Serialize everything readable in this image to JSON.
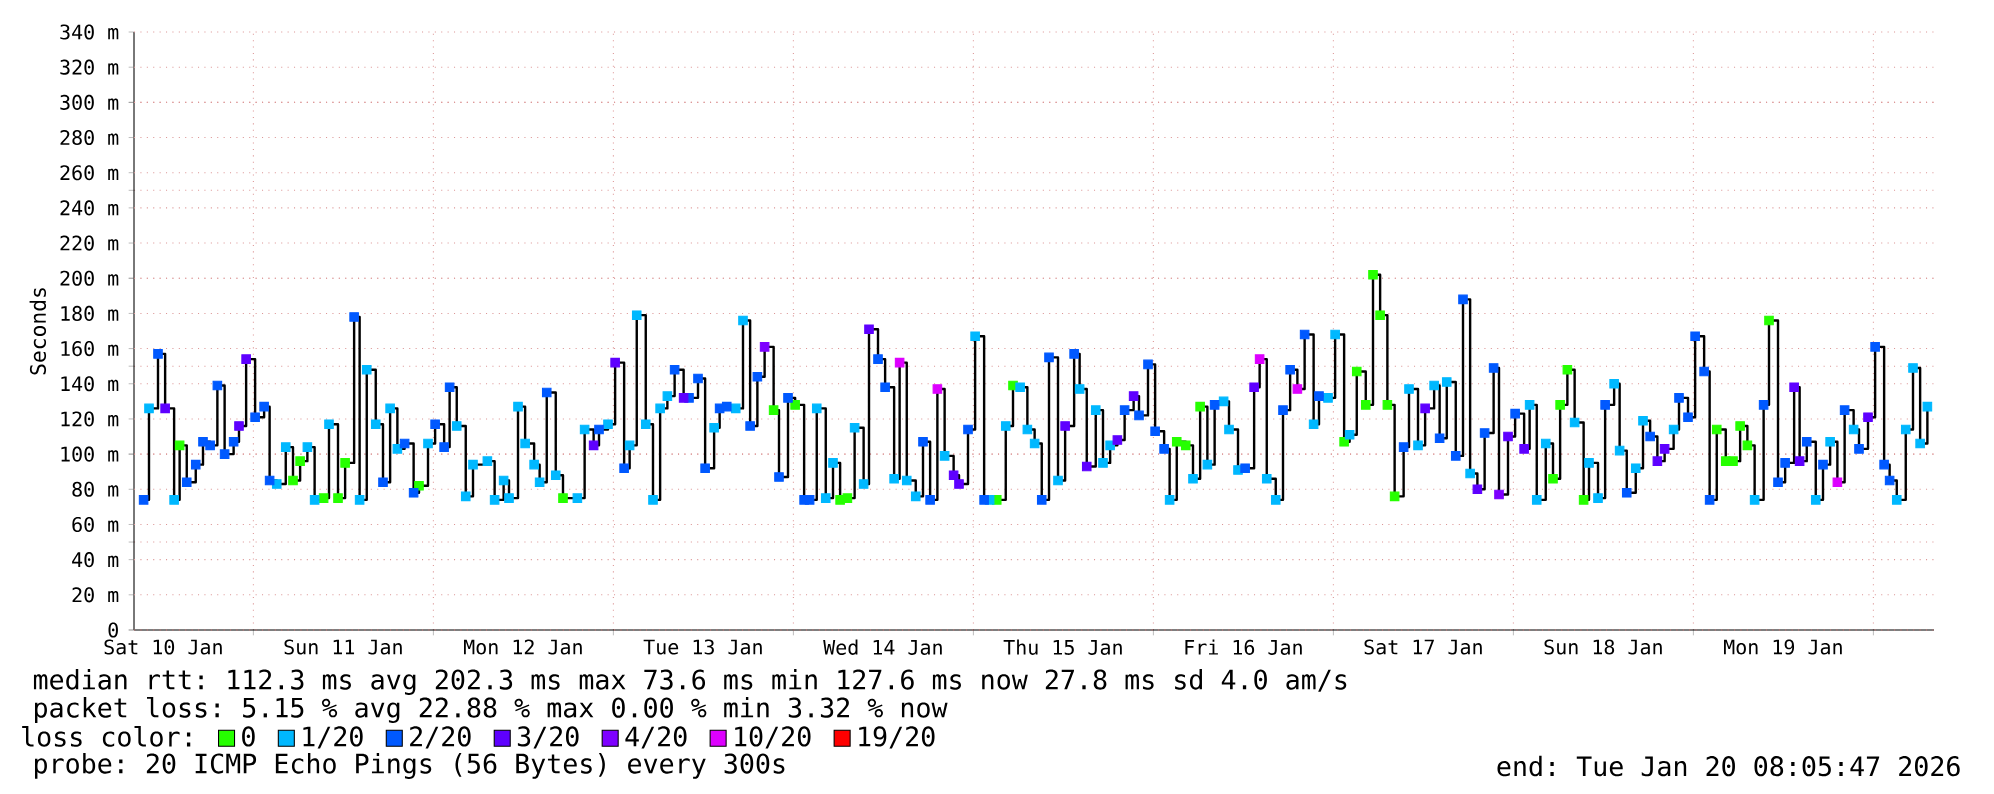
{
  "chart_data": {
    "type": "step",
    "ylabel": "Seconds",
    "legend_title": "loss color:",
    "legend": "bottom",
    "grid": true,
    "xlim": [
      "2026-01-10T08:05",
      "2026-01-20T08:05"
    ],
    "xticks": [
      {
        "value": "2026-01-10T12:00",
        "label": "Sat 10 Jan"
      },
      {
        "value": "2026-01-11T12:00",
        "label": "Sun 11 Jan"
      },
      {
        "value": "2026-01-12T12:00",
        "label": "Mon 12 Jan"
      },
      {
        "value": "2026-01-13T12:00",
        "label": "Tue 13 Jan"
      },
      {
        "value": "2026-01-14T12:00",
        "label": "Wed 14 Jan"
      },
      {
        "value": "2026-01-15T12:00",
        "label": "Thu 15 Jan"
      },
      {
        "value": "2026-01-16T12:00",
        "label": "Fri 16 Jan"
      },
      {
        "value": "2026-01-17T12:00",
        "label": "Sat 17 Jan"
      },
      {
        "value": "2026-01-18T12:00",
        "label": "Sun 18 Jan"
      },
      {
        "value": "2026-01-19T12:00",
        "label": "Mon 19 Jan"
      },
      {
        "value": "2026-01-11",
        "label": null
      },
      {
        "value": "2026-01-12",
        "label": null
      },
      {
        "value": "2026-01-13",
        "label": null
      },
      {
        "value": "2026-01-14",
        "label": null
      },
      {
        "value": "2026-01-15",
        "label": null
      },
      {
        "value": "2026-01-16",
        "label": null
      },
      {
        "value": "2026-01-17",
        "label": null
      },
      {
        "value": "2026-01-18",
        "label": null
      },
      {
        "value": "2026-01-19",
        "label": null
      },
      {
        "value": "2026-01-20",
        "label": null
      }
    ],
    "ylim": [
      0,
      340
    ],
    "yticks": [
      0,
      {
        "value": 20,
        "label": "20 m"
      },
      {
        "value": 40,
        "label": "40 m"
      },
      {
        "value": 60,
        "label": "60 m"
      },
      {
        "value": 80,
        "label": "80 m"
      },
      {
        "value": 100,
        "label": "100 m"
      },
      {
        "value": 120,
        "label": "120 m"
      },
      {
        "value": 140,
        "label": "140 m"
      },
      {
        "value": 160,
        "label": "160 m"
      },
      {
        "value": 180,
        "label": "180 m"
      },
      {
        "value": 200,
        "label": "200 m"
      },
      {
        "value": 220,
        "label": "220 m"
      },
      {
        "value": 240,
        "label": "240 m"
      },
      {
        "value": 260,
        "label": "260 m"
      },
      {
        "value": 280,
        "label": "280 m"
      },
      {
        "value": 300,
        "label": "300 m"
      },
      {
        "value": 320,
        "label": "320 m"
      },
      {
        "value": 340,
        "label": "340 m"
      }
    ],
    "annotations": [
      "median rtt: 112.3 ms avg 202.3 ms max 73.6 ms min 127.6 ms now 27.8 ms sd 4.0 am/s",
      "packet loss: 5.15 % avg 22.88 % max 0.00 % min 3.32 % now",
      "probe: 20 ICMP Echo Pings (56 Bytes) every 300s",
      "end: Tue Jan 20 08:05:47 2026"
    ],
    "series": [
      {
        "color": "#000000",
        "marker": "none",
        "line_style": "solid",
        "x": [
          "2026-01-10T09:22",
          "2026-01-10T10:05",
          "2026-01-10T11:17",
          "2026-01-10T12:14",
          "2026-01-10T13:26",
          "2026-01-10T14:10",
          "2026-01-10T15:07",
          "2026-01-10T16:19",
          "2026-01-10T17:17",
          "2026-01-10T18:14",
          "2026-01-10T19:12",
          "2026-01-10T20:10",
          "2026-01-10T21:22",
          "2026-01-10T22:05",
          "2026-01-10T23:02",
          "2026-01-11T00:14",
          "2026-01-11T01:26",
          "2026-01-11T02:10",
          "2026-01-11T03:07",
          "2026-01-11T04:19",
          "2026-01-11T05:17",
          "2026-01-11T06:14",
          "2026-01-11T07:12",
          "2026-01-11T08:10",
          "2026-01-11T09:22",
          "2026-01-11T10:05",
          "2026-01-11T11:17",
          "2026-01-11T12:14",
          "2026-01-11T13:26",
          "2026-01-11T14:10",
          "2026-01-11T15:07",
          "2026-01-11T16:19",
          "2026-01-11T17:17",
          "2026-01-11T18:14",
          "2026-01-11T19:12",
          "2026-01-11T20:10",
          "2026-01-11T21:22",
          "2026-01-11T22:05",
          "2026-01-11T23:17",
          "2026-01-12T00:14",
          "2026-01-12T01:26",
          "2026-01-12T02:10",
          "2026-01-12T03:07",
          "2026-01-12T04:19",
          "2026-01-12T05:17",
          "2026-01-12T07:12",
          "2026-01-12T08:10",
          "2026-01-12T09:22",
          "2026-01-12T10:05",
          "2026-01-12T11:17",
          "2026-01-12T12:14",
          "2026-01-12T13:26",
          "2026-01-12T14:10",
          "2026-01-12T15:07",
          "2026-01-12T16:19",
          "2026-01-12T17:17",
          "2026-01-12T19:12",
          "2026-01-12T20:10",
          "2026-01-12T21:22",
          "2026-01-12T22:05",
          "2026-01-12T23:17",
          "2026-01-13T00:14",
          "2026-01-13T01:26",
          "2026-01-13T02:10",
          "2026-01-13T03:07",
          "2026-01-13T04:19",
          "2026-01-13T05:17",
          "2026-01-13T06:14",
          "2026-01-13T07:12",
          "2026-01-13T08:10",
          "2026-01-13T09:22",
          "2026-01-13T10:05",
          "2026-01-13T11:17",
          "2026-01-13T12:14",
          "2026-01-13T13:26",
          "2026-01-13T14:10",
          "2026-01-13T15:07",
          "2026-01-13T16:19",
          "2026-01-13T17:17",
          "2026-01-13T18:14",
          "2026-01-13T19:12",
          "2026-01-13T20:10",
          "2026-01-13T21:22",
          "2026-01-13T22:05",
          "2026-01-13T23:17",
          "2026-01-14T00:14",
          "2026-01-14T01:26",
          "2026-01-14T02:10",
          "2026-01-14T03:07",
          "2026-01-14T04:19",
          "2026-01-14T05:17",
          "2026-01-14T06:14",
          "2026-01-14T07:12",
          "2026-01-14T08:10",
          "2026-01-14T09:22",
          "2026-01-14T10:05",
          "2026-01-14T11:17",
          "2026-01-14T12:14",
          "2026-01-14T13:26",
          "2026-01-14T14:10",
          "2026-01-14T15:07",
          "2026-01-14T16:19",
          "2026-01-14T17:17",
          "2026-01-14T18:14",
          "2026-01-14T19:12",
          "2026-01-14T20:10",
          "2026-01-14T21:22",
          "2026-01-14T22:05",
          "2026-01-14T23:17",
          "2026-01-15T00:14",
          "2026-01-15T01:26",
          "2026-01-15T02:10",
          "2026-01-15T03:07",
          "2026-01-15T04:19",
          "2026-01-15T05:17",
          "2026-01-15T06:14",
          "2026-01-15T07:12",
          "2026-01-15T08:10",
          "2026-01-15T09:07",
          "2026-01-15T10:05",
          "2026-01-15T11:17",
          "2026-01-15T12:14",
          "2026-01-15T13:26",
          "2026-01-15T14:10",
          "2026-01-15T15:07",
          "2026-01-15T16:19",
          "2026-01-15T17:17",
          "2026-01-15T18:14",
          "2026-01-15T19:12",
          "2026-01-15T20:10",
          "2026-01-15T21:22",
          "2026-01-15T22:05",
          "2026-01-15T23:17",
          "2026-01-16T00:14",
          "2026-01-16T01:26",
          "2026-01-16T02:10",
          "2026-01-16T03:07",
          "2026-01-16T04:19",
          "2026-01-16T05:17",
          "2026-01-16T06:14",
          "2026-01-16T07:12",
          "2026-01-16T08:10",
          "2026-01-16T09:22",
          "2026-01-16T10:05",
          "2026-01-16T11:17",
          "2026-01-16T12:14",
          "2026-01-16T13:26",
          "2026-01-16T14:10",
          "2026-01-16T15:07",
          "2026-01-16T16:19",
          "2026-01-16T17:17",
          "2026-01-16T18:14",
          "2026-01-16T19:12",
          "2026-01-16T20:10",
          "2026-01-16T21:22",
          "2026-01-16T22:05",
          "2026-01-16T23:17",
          "2026-01-17T00:14",
          "2026-01-17T01:26",
          "2026-01-17T02:10",
          "2026-01-17T03:07",
          "2026-01-17T04:19",
          "2026-01-17T05:17",
          "2026-01-17T06:14",
          "2026-01-17T07:12",
          "2026-01-17T08:10",
          "2026-01-17T09:22",
          "2026-01-17T10:05",
          "2026-01-17T11:17",
          "2026-01-17T12:14",
          "2026-01-17T13:26",
          "2026-01-17T14:10",
          "2026-01-17T15:07",
          "2026-01-17T16:19",
          "2026-01-17T17:17",
          "2026-01-17T18:14",
          "2026-01-17T19:12",
          "2026-01-17T20:10",
          "2026-01-17T21:22",
          "2026-01-17T22:05",
          "2026-01-17T23:17",
          "2026-01-18T00:14",
          "2026-01-18T01:26",
          "2026-01-18T02:10",
          "2026-01-18T03:07",
          "2026-01-18T04:19",
          "2026-01-18T05:17",
          "2026-01-18T06:14",
          "2026-01-18T07:12",
          "2026-01-18T08:10",
          "2026-01-18T09:22",
          "2026-01-18T10:05",
          "2026-01-18T11:17",
          "2026-01-18T12:14",
          "2026-01-18T13:26",
          "2026-01-18T14:10",
          "2026-01-18T15:07",
          "2026-01-18T16:19",
          "2026-01-18T17:17",
          "2026-01-18T18:14",
          "2026-01-18T19:12",
          "2026-01-18T20:10",
          "2026-01-18T21:22",
          "2026-01-18T22:05",
          "2026-01-18T23:17",
          "2026-01-19T00:14",
          "2026-01-19T01:26",
          "2026-01-19T02:10",
          "2026-01-19T03:07",
          "2026-01-19T04:19",
          "2026-01-19T05:17",
          "2026-01-19T06:14",
          "2026-01-19T07:12",
          "2026-01-19T08:10",
          "2026-01-19T09:22",
          "2026-01-19T10:05",
          "2026-01-19T11:17",
          "2026-01-19T12:14",
          "2026-01-19T13:26",
          "2026-01-19T14:10",
          "2026-01-19T15:07",
          "2026-01-19T16:19",
          "2026-01-19T17:17",
          "2026-01-19T18:14",
          "2026-01-19T19:12",
          "2026-01-19T20:10",
          "2026-01-19T21:22",
          "2026-01-19T22:05",
          "2026-01-19T23:17",
          "2026-01-20T00:14",
          "2026-01-20T01:26",
          "2026-01-20T02:10",
          "2026-01-20T03:07",
          "2026-01-20T04:19",
          "2026-01-20T05:17",
          "2026-01-20T06:14",
          "2026-01-20T07:12"
        ],
        "values": [
          74,
          126,
          157,
          126,
          74,
          105,
          84,
          94,
          107,
          105,
          139,
          100,
          107,
          116,
          154,
          121,
          127,
          85,
          83,
          104,
          85,
          96,
          104,
          74,
          75,
          117,
          75,
          95,
          178,
          74,
          148,
          117,
          84,
          126,
          103,
          106,
          78,
          82,
          106,
          117,
          104,
          138,
          116,
          76,
          94,
          96,
          74,
          85,
          75,
          127,
          106,
          94,
          84,
          135,
          88,
          75,
          75,
          114,
          105,
          114,
          117,
          152,
          92,
          105,
          179,
          117,
          74,
          126,
          133,
          148,
          132,
          132,
          143,
          92,
          115,
          126,
          127,
          126,
          176,
          116,
          144,
          161,
          125,
          87,
          132,
          128,
          74,
          74,
          126,
          75,
          95,
          74,
          75,
          115,
          83,
          171,
          154,
          138,
          86,
          152,
          85,
          76,
          107,
          74,
          137,
          99,
          88,
          83,
          114,
          167,
          74,
          74,
          74,
          116,
          139,
          138,
          114,
          106,
          74,
          155,
          85,
          116,
          157,
          137,
          93,
          125,
          95,
          105,
          108,
          125,
          133,
          122,
          151,
          113,
          103,
          74,
          107,
          105,
          86,
          127,
          94,
          128,
          130,
          114,
          91,
          92,
          138,
          154,
          86,
          74,
          125,
          148,
          137,
          168,
          117,
          133,
          132,
          168,
          107,
          111,
          147,
          128,
          202,
          179,
          128,
          76,
          104,
          137,
          105,
          126,
          139,
          109,
          141,
          99,
          188,
          89,
          80,
          112,
          149,
          77,
          110,
          123,
          103,
          128,
          74,
          106,
          86,
          128,
          148,
          118,
          74,
          95,
          75,
          128,
          140,
          102,
          78,
          92,
          119,
          110,
          96,
          103,
          114,
          132,
          121,
          167,
          147,
          74,
          114,
          96,
          96,
          116,
          105,
          74,
          128,
          176,
          84,
          95,
          138,
          96,
          107,
          74,
          94,
          107,
          84,
          125,
          114,
          103,
          121,
          161,
          94,
          85,
          74,
          114,
          149,
          106,
          127
        ]
      },
      {
        "type": "scatter",
        "name": "0",
        "color": "#26ff00",
        "marker": "square",
        "x": [
          "2026-01-10T14:10",
          "2026-01-11T05:17",
          "2026-01-11T06:14",
          "2026-01-11T09:22",
          "2026-01-11T11:17",
          "2026-01-11T12:14",
          "2026-01-11T22:05",
          "2026-01-12T17:17",
          "2026-01-13T21:22",
          "2026-01-14T00:14",
          "2026-01-14T06:14",
          "2026-01-14T07:12",
          "2026-01-15T03:07",
          "2026-01-15T05:17",
          "2026-01-16T03:07",
          "2026-01-16T04:19",
          "2026-01-16T06:14",
          "2026-01-17T01:26",
          "2026-01-17T03:07",
          "2026-01-17T04:19",
          "2026-01-17T05:17",
          "2026-01-17T06:14",
          "2026-01-17T07:12",
          "2026-01-17T08:10",
          "2026-01-18T05:17",
          "2026-01-18T06:14",
          "2026-01-18T07:12",
          "2026-01-18T09:22",
          "2026-01-19T03:07",
          "2026-01-19T04:19",
          "2026-01-19T05:17",
          "2026-01-19T06:14",
          "2026-01-19T07:12",
          "2026-01-19T10:05"
        ],
        "values": [
          105,
          85,
          96,
          75,
          75,
          95,
          82,
          75,
          125,
          128,
          74,
          75,
          74,
          139,
          107,
          105,
          127,
          107,
          147,
          128,
          202,
          179,
          128,
          76,
          86,
          128,
          148,
          74,
          114,
          96,
          96,
          116,
          105,
          176
        ]
      },
      {
        "type": "scatter",
        "name": "1/20",
        "color": "#00b8ff",
        "marker": "square",
        "x": [
          "2026-01-10T10:05",
          "2026-01-10T13:26",
          "2026-01-11T03:07",
          "2026-01-11T04:19",
          "2026-01-11T07:12",
          "2026-01-11T08:10",
          "2026-01-11T10:05",
          "2026-01-11T14:10",
          "2026-01-11T15:07",
          "2026-01-11T16:19",
          "2026-01-11T18:14",
          "2026-01-11T19:12",
          "2026-01-11T23:17",
          "2026-01-12T03:07",
          "2026-01-12T04:19",
          "2026-01-12T05:17",
          "2026-01-12T07:12",
          "2026-01-12T08:10",
          "2026-01-12T09:22",
          "2026-01-12T10:05",
          "2026-01-12T11:17",
          "2026-01-12T12:14",
          "2026-01-12T13:26",
          "2026-01-12T14:10",
          "2026-01-12T16:19",
          "2026-01-12T19:12",
          "2026-01-12T20:10",
          "2026-01-12T23:17",
          "2026-01-13T02:10",
          "2026-01-13T03:07",
          "2026-01-13T04:19",
          "2026-01-13T05:17",
          "2026-01-13T06:14",
          "2026-01-13T07:12",
          "2026-01-13T13:26",
          "2026-01-13T16:19",
          "2026-01-13T17:17",
          "2026-01-14T03:07",
          "2026-01-14T04:19",
          "2026-01-14T05:17",
          "2026-01-14T08:10",
          "2026-01-14T09:22",
          "2026-01-14T13:26",
          "2026-01-14T15:07",
          "2026-01-14T16:19",
          "2026-01-14T20:10",
          "2026-01-15T00:14",
          "2026-01-15T02:10",
          "2026-01-15T04:19",
          "2026-01-15T06:14",
          "2026-01-15T07:12",
          "2026-01-15T08:10",
          "2026-01-15T11:17",
          "2026-01-15T14:10",
          "2026-01-15T16:19",
          "2026-01-15T17:17",
          "2026-01-15T18:14",
          "2026-01-16T02:10",
          "2026-01-16T05:17",
          "2026-01-16T07:12",
          "2026-01-16T09:22",
          "2026-01-16T10:05",
          "2026-01-16T11:17",
          "2026-01-16T15:07",
          "2026-01-16T16:19",
          "2026-01-16T21:22",
          "2026-01-16T23:17",
          "2026-01-17T00:14",
          "2026-01-17T02:10",
          "2026-01-17T10:05",
          "2026-01-17T11:17",
          "2026-01-17T13:26",
          "2026-01-17T15:07",
          "2026-01-17T18:14",
          "2026-01-18T02:10",
          "2026-01-18T03:07",
          "2026-01-18T04:19",
          "2026-01-18T08:10",
          "2026-01-18T10:05",
          "2026-01-18T11:17",
          "2026-01-18T13:26",
          "2026-01-18T14:10",
          "2026-01-18T16:19",
          "2026-01-18T17:17",
          "2026-01-18T21:22",
          "2026-01-19T08:10",
          "2026-01-19T16:19",
          "2026-01-19T18:14",
          "2026-01-19T21:22",
          "2026-01-20T03:07",
          "2026-01-20T04:19",
          "2026-01-20T05:17",
          "2026-01-20T06:14",
          "2026-01-20T07:12"
        ],
        "values": [
          126,
          74,
          83,
          104,
          104,
          74,
          117,
          74,
          148,
          117,
          126,
          103,
          106,
          116,
          76,
          94,
          96,
          74,
          85,
          75,
          127,
          106,
          94,
          84,
          88,
          75,
          114,
          117,
          105,
          179,
          117,
          74,
          126,
          133,
          115,
          126,
          176,
          126,
          75,
          95,
          115,
          83,
          86,
          85,
          76,
          99,
          167,
          74,
          116,
          138,
          114,
          106,
          85,
          137,
          125,
          95,
          105,
          74,
          86,
          94,
          130,
          114,
          91,
          86,
          74,
          117,
          132,
          168,
          111,
          137,
          105,
          139,
          141,
          89,
          128,
          74,
          106,
          118,
          95,
          75,
          140,
          102,
          92,
          119,
          114,
          74,
          74,
          107,
          114,
          74,
          114,
          149,
          106,
          127
        ]
      },
      {
        "type": "scatter",
        "name": "2/20",
        "color": "#0059ff",
        "marker": "square",
        "x": [
          "2026-01-10T09:22",
          "2026-01-10T11:17",
          "2026-01-10T15:07",
          "2026-01-10T16:19",
          "2026-01-10T17:17",
          "2026-01-10T18:14",
          "2026-01-10T19:12",
          "2026-01-10T20:10",
          "2026-01-10T21:22",
          "2026-01-11T00:14",
          "2026-01-11T01:26",
          "2026-01-11T02:10",
          "2026-01-11T13:26",
          "2026-01-11T17:17",
          "2026-01-11T20:10",
          "2026-01-11T21:22",
          "2026-01-12T00:14",
          "2026-01-12T01:26",
          "2026-01-12T02:10",
          "2026-01-12T15:07",
          "2026-01-12T22:05",
          "2026-01-13T01:26",
          "2026-01-13T08:10",
          "2026-01-13T10:05",
          "2026-01-13T11:17",
          "2026-01-13T12:14",
          "2026-01-13T14:10",
          "2026-01-13T15:07",
          "2026-01-13T18:14",
          "2026-01-13T19:12",
          "2026-01-13T22:05",
          "2026-01-13T23:17",
          "2026-01-14T01:26",
          "2026-01-14T02:10",
          "2026-01-14T11:17",
          "2026-01-14T12:14",
          "2026-01-14T17:17",
          "2026-01-14T18:14",
          "2026-01-14T23:17",
          "2026-01-15T01:26",
          "2026-01-15T09:07",
          "2026-01-15T10:05",
          "2026-01-15T13:26",
          "2026-01-15T20:10",
          "2026-01-15T22:05",
          "2026-01-15T23:17",
          "2026-01-16T00:14",
          "2026-01-16T01:26",
          "2026-01-16T08:10",
          "2026-01-16T12:14",
          "2026-01-16T17:17",
          "2026-01-16T18:14",
          "2026-01-16T20:10",
          "2026-01-16T22:05",
          "2026-01-17T09:22",
          "2026-01-17T14:10",
          "2026-01-17T16:19",
          "2026-01-17T17:17",
          "2026-01-17T20:10",
          "2026-01-17T21:22",
          "2026-01-18T00:14",
          "2026-01-18T12:14",
          "2026-01-18T15:07",
          "2026-01-18T18:14",
          "2026-01-18T22:05",
          "2026-01-18T23:17",
          "2026-01-19T00:14",
          "2026-01-19T01:26",
          "2026-01-19T02:10",
          "2026-01-19T09:22",
          "2026-01-19T11:17",
          "2026-01-19T12:14",
          "2026-01-19T15:07",
          "2026-01-19T17:17",
          "2026-01-19T20:10",
          "2026-01-19T22:05",
          "2026-01-20T00:14",
          "2026-01-20T01:26",
          "2026-01-20T02:10"
        ],
        "values": [
          74,
          157,
          84,
          94,
          107,
          105,
          139,
          100,
          107,
          121,
          127,
          85,
          178,
          84,
          106,
          78,
          117,
          104,
          138,
          135,
          114,
          92,
          148,
          132,
          143,
          92,
          126,
          127,
          116,
          144,
          87,
          132,
          74,
          74,
          154,
          138,
          107,
          74,
          114,
          74,
          74,
          155,
          157,
          125,
          122,
          151,
          113,
          103,
          128,
          92,
          125,
          148,
          168,
          133,
          104,
          109,
          99,
          188,
          112,
          149,
          123,
          128,
          78,
          110,
          132,
          121,
          167,
          147,
          74,
          128,
          84,
          95,
          107,
          94,
          125,
          103,
          161,
          94,
          85
        ]
      },
      {
        "type": "scatter",
        "name": "3/20",
        "color": "#5e00ff",
        "marker": "square",
        "x": [
          "2026-01-10T12:14",
          "2026-01-10T22:05",
          "2026-01-10T23:02",
          "2026-01-12T21:22",
          "2026-01-13T00:14",
          "2026-01-13T09:22",
          "2026-01-14T10:05",
          "2026-01-14T21:22",
          "2026-01-14T22:05",
          "2026-01-15T12:14",
          "2026-01-15T15:07",
          "2026-01-15T19:12",
          "2026-01-15T21:22",
          "2026-01-16T13:26",
          "2026-01-17T12:14",
          "2026-01-17T19:12",
          "2026-01-17T23:17",
          "2026-01-18T01:26",
          "2026-01-18T19:12",
          "2026-01-18T20:10",
          "2026-01-19T13:26",
          "2026-01-19T14:10",
          "2026-01-19T23:17"
        ],
        "values": [
          126,
          116,
          154,
          105,
          152,
          132,
          171,
          88,
          83,
          116,
          93,
          108,
          133,
          138,
          126,
          80,
          110,
          103,
          96,
          103,
          138,
          96,
          121
        ]
      },
      {
        "type": "scatter",
        "name": "4/20",
        "color": "#7e00ff",
        "marker": "square",
        "x": [
          "2026-01-13T20:10",
          "2026-01-17T22:05"
        ],
        "values": [
          161,
          77
        ]
      },
      {
        "type": "scatter",
        "name": "10/20",
        "color": "#dd00ff",
        "marker": "square",
        "x": [
          "2026-01-14T14:10",
          "2026-01-14T19:12",
          "2026-01-16T14:10",
          "2026-01-16T19:12",
          "2026-01-19T19:12"
        ],
        "values": [
          152,
          137,
          154,
          137,
          84
        ]
      },
      {
        "type": "scatter",
        "name": "19/20",
        "color": "#ff0000",
        "marker": "square"
      }
    ]
  }
}
